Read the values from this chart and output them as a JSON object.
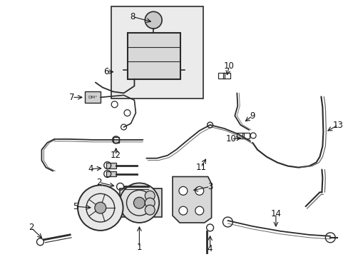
{
  "background_color": "#ffffff",
  "fig_width": 4.89,
  "fig_height": 3.6,
  "dpi": 100,
  "label_fontsize": 8.5,
  "arrow_color": "#1a1a1a",
  "label_color": "#111111",
  "line_color": "#2a2a2a",
  "box_bg": "#ebebeb"
}
